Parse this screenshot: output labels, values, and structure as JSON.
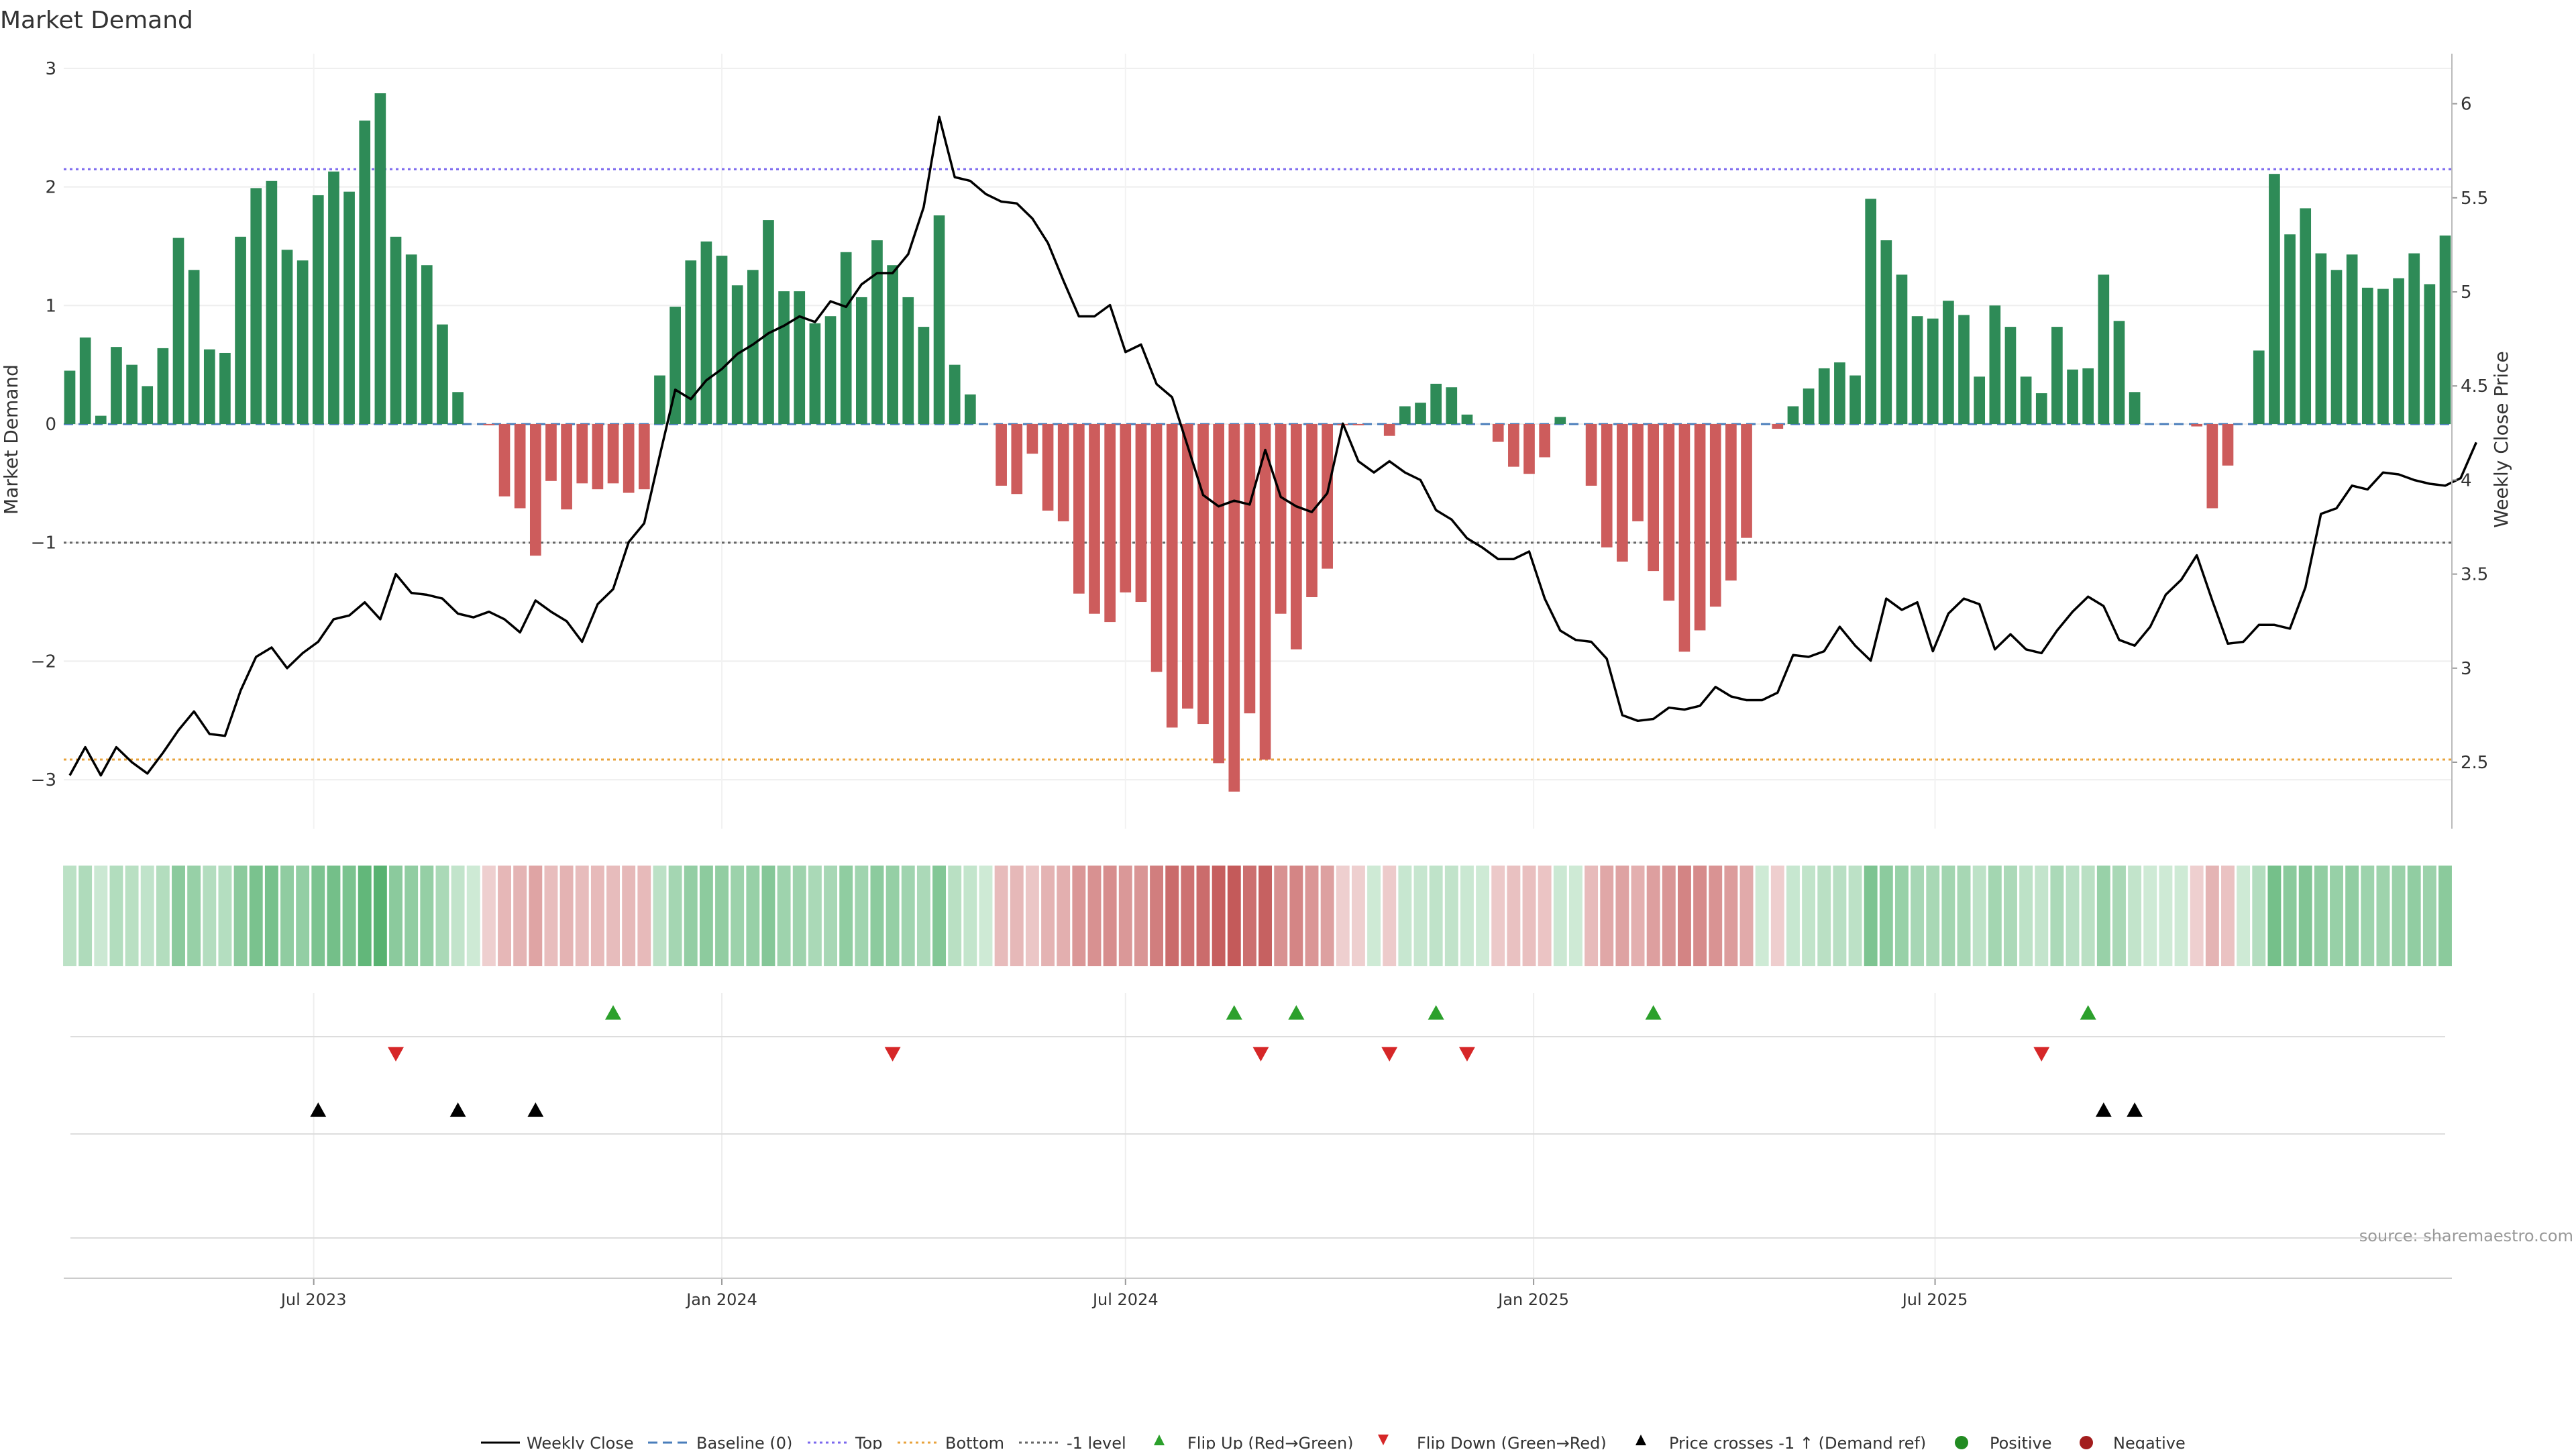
{
  "chart_data": {
    "type": "bar",
    "title": "Market Demand",
    "ylabel_left": "Market Demand",
    "ylabel_right": "Weekly Close Price",
    "source": "source: sharemaestro.com",
    "ylim_left": [
      -3.4,
      3.1
    ],
    "ylim_right": [
      2.2,
      6.3
    ],
    "yticks_left": [
      "3",
      "2",
      "1",
      "0",
      "−1",
      "−2",
      "−3"
    ],
    "yticks_left_values": [
      3,
      2,
      1,
      0,
      -1,
      -2,
      -3
    ],
    "yticks_right": [
      "6",
      "5.5",
      "5",
      "4.5",
      "4",
      "3.5",
      "3",
      "2.5"
    ],
    "yticks_right_values": [
      6,
      5.5,
      5,
      4.5,
      4,
      3.5,
      3,
      2.5
    ],
    "x_start": "2023-03-13",
    "x_step_days": 7,
    "xticks": [
      {
        "label": "Jul 2023",
        "date": "2023-07-01"
      },
      {
        "label": "Jan 2024",
        "date": "2024-01-01"
      },
      {
        "label": "Jul 2024",
        "date": "2024-07-01"
      },
      {
        "label": "Jan 2025",
        "date": "2025-01-01"
      },
      {
        "label": "Jul 2025",
        "date": "2025-07-01"
      }
    ],
    "levels": {
      "top": 2.15,
      "bottom": -2.83,
      "minus_one": -1.0
    },
    "colors": {
      "positive": "#2e8b57",
      "negative": "#cd5c5c",
      "price": "#000000",
      "top": "#7b68ee",
      "bottom": "#e8a33c",
      "minus_one": "#666666",
      "flip_up": "#2ca02c",
      "flip_down": "#d62728",
      "baseline": "#4a7ebb"
    },
    "series": [
      {
        "name": "Market Demand",
        "values": [
          0.45,
          0.73,
          0.07,
          0.65,
          0.5,
          0.32,
          0.64,
          1.57,
          1.3,
          0.63,
          0.6,
          1.58,
          1.99,
          2.05,
          1.47,
          1.38,
          1.93,
          2.13,
          1.96,
          2.56,
          2.79,
          1.58,
          1.43,
          1.34,
          0.84,
          0.27,
          0,
          -0.01,
          -0.61,
          -0.71,
          -1.11,
          -0.48,
          -0.72,
          -0.5,
          -0.55,
          -0.5,
          -0.58,
          -0.55,
          0.41,
          0.99,
          1.38,
          1.54,
          1.42,
          1.17,
          1.3,
          1.72,
          1.12,
          1.12,
          0.85,
          0.91,
          1.45,
          1.07,
          1.55,
          1.34,
          1.07,
          0.82,
          1.76,
          0.5,
          0.25,
          0,
          -0.52,
          -0.59,
          -0.25,
          -0.73,
          -0.82,
          -1.43,
          -1.6,
          -1.67,
          -1.42,
          -1.5,
          -2.09,
          -2.56,
          -2.4,
          -2.53,
          -2.86,
          -3.1,
          -2.44,
          -2.83,
          -1.6,
          -1.9,
          -1.46,
          -1.22,
          -0.01,
          -0.01,
          0,
          -0.1,
          0.15,
          0.18,
          0.34,
          0.31,
          0.08,
          0,
          -0.15,
          -0.36,
          -0.42,
          -0.28,
          0.06,
          0,
          -0.52,
          -1.04,
          -1.16,
          -0.82,
          -1.24,
          -1.49,
          -1.92,
          -1.74,
          -1.54,
          -1.32,
          -0.96,
          0,
          -0.04,
          0.15,
          0.3,
          0.47,
          0.52,
          0.41,
          1.9,
          1.55,
          1.26,
          0.91,
          0.89,
          1.04,
          0.92,
          0.4,
          1.0,
          0.82,
          0.4,
          0.26,
          0.82,
          0.46,
          0.47,
          1.26,
          0.87,
          0.27,
          0,
          0,
          0,
          -0.02,
          -0.71,
          -0.35,
          0,
          0.62,
          2.11,
          1.6,
          1.82,
          1.44,
          1.3,
          1.43,
          1.15,
          1.14,
          1.23,
          1.44,
          1.18,
          1.59
        ]
      },
      {
        "name": "Weekly Close",
        "values": [
          2.43,
          2.58,
          2.43,
          2.58,
          2.5,
          2.44,
          2.55,
          2.67,
          2.77,
          2.65,
          2.64,
          2.88,
          3.06,
          3.11,
          3.0,
          3.08,
          3.14,
          3.26,
          3.28,
          3.35,
          3.26,
          3.5,
          3.4,
          3.39,
          3.37,
          3.29,
          3.27,
          3.3,
          3.26,
          3.19,
          3.36,
          3.3,
          3.25,
          3.14,
          3.34,
          3.42,
          3.67,
          3.77,
          4.13,
          4.48,
          4.43,
          4.53,
          4.59,
          4.67,
          4.72,
          4.78,
          4.82,
          4.87,
          4.84,
          4.95,
          4.92,
          5.04,
          5.1,
          5.1,
          5.2,
          5.45,
          5.93,
          5.61,
          5.59,
          5.52,
          5.48,
          5.47,
          5.39,
          5.26,
          5.06,
          4.87,
          4.87,
          4.93,
          4.68,
          4.72,
          4.51,
          4.44,
          4.18,
          3.92,
          3.86,
          3.89,
          3.87,
          4.16,
          3.91,
          3.86,
          3.83,
          3.93,
          4.3,
          4.1,
          4.04,
          4.1,
          4.04,
          4.0,
          3.84,
          3.79,
          3.69,
          3.64,
          3.58,
          3.58,
          3.62,
          3.37,
          3.2,
          3.15,
          3.14,
          3.05,
          2.75,
          2.72,
          2.73,
          2.79,
          2.78,
          2.8,
          2.9,
          2.85,
          2.83,
          2.83,
          2.87,
          3.07,
          3.06,
          3.09,
          3.22,
          3.12,
          3.04,
          3.37,
          3.31,
          3.35,
          3.09,
          3.29,
          3.37,
          3.34,
          3.1,
          3.18,
          3.1,
          3.08,
          3.2,
          3.3,
          3.38,
          3.33,
          3.15,
          3.12,
          3.22,
          3.39,
          3.47,
          3.6,
          3.36,
          3.13,
          3.14,
          3.23,
          3.23,
          3.21,
          3.43,
          3.82,
          3.85,
          3.97,
          3.95,
          4.04,
          4.03,
          4.0,
          3.98,
          3.97,
          4.01,
          4.2
        ]
      }
    ],
    "flip_up": [
      "2023-11-13",
      "2024-08-19",
      "2024-09-16",
      "2024-11-18",
      "2025-02-24",
      "2025-09-08"
    ],
    "flip_down": [
      "2023-08-07",
      "2024-03-18",
      "2024-08-31",
      "2024-10-28",
      "2024-12-02",
      "2025-08-18"
    ],
    "price_cross": [
      "2023-07-03",
      "2023-09-04",
      "2023-10-09",
      "2025-09-15",
      "2025-09-29"
    ],
    "legend_position": "bottom-center",
    "legend": {
      "weekly_close": "Weekly Close",
      "baseline": "Baseline (0)",
      "top": "Top",
      "bottom": "Bottom",
      "minus_one": "-1 level",
      "flip_up": "Flip Up (Red→Green)",
      "flip_down": "Flip Down (Green→Red)",
      "price_cross": "Price crosses -1 ↑ (Demand ref)",
      "positive": "Positive",
      "negative": "Negative"
    }
  }
}
